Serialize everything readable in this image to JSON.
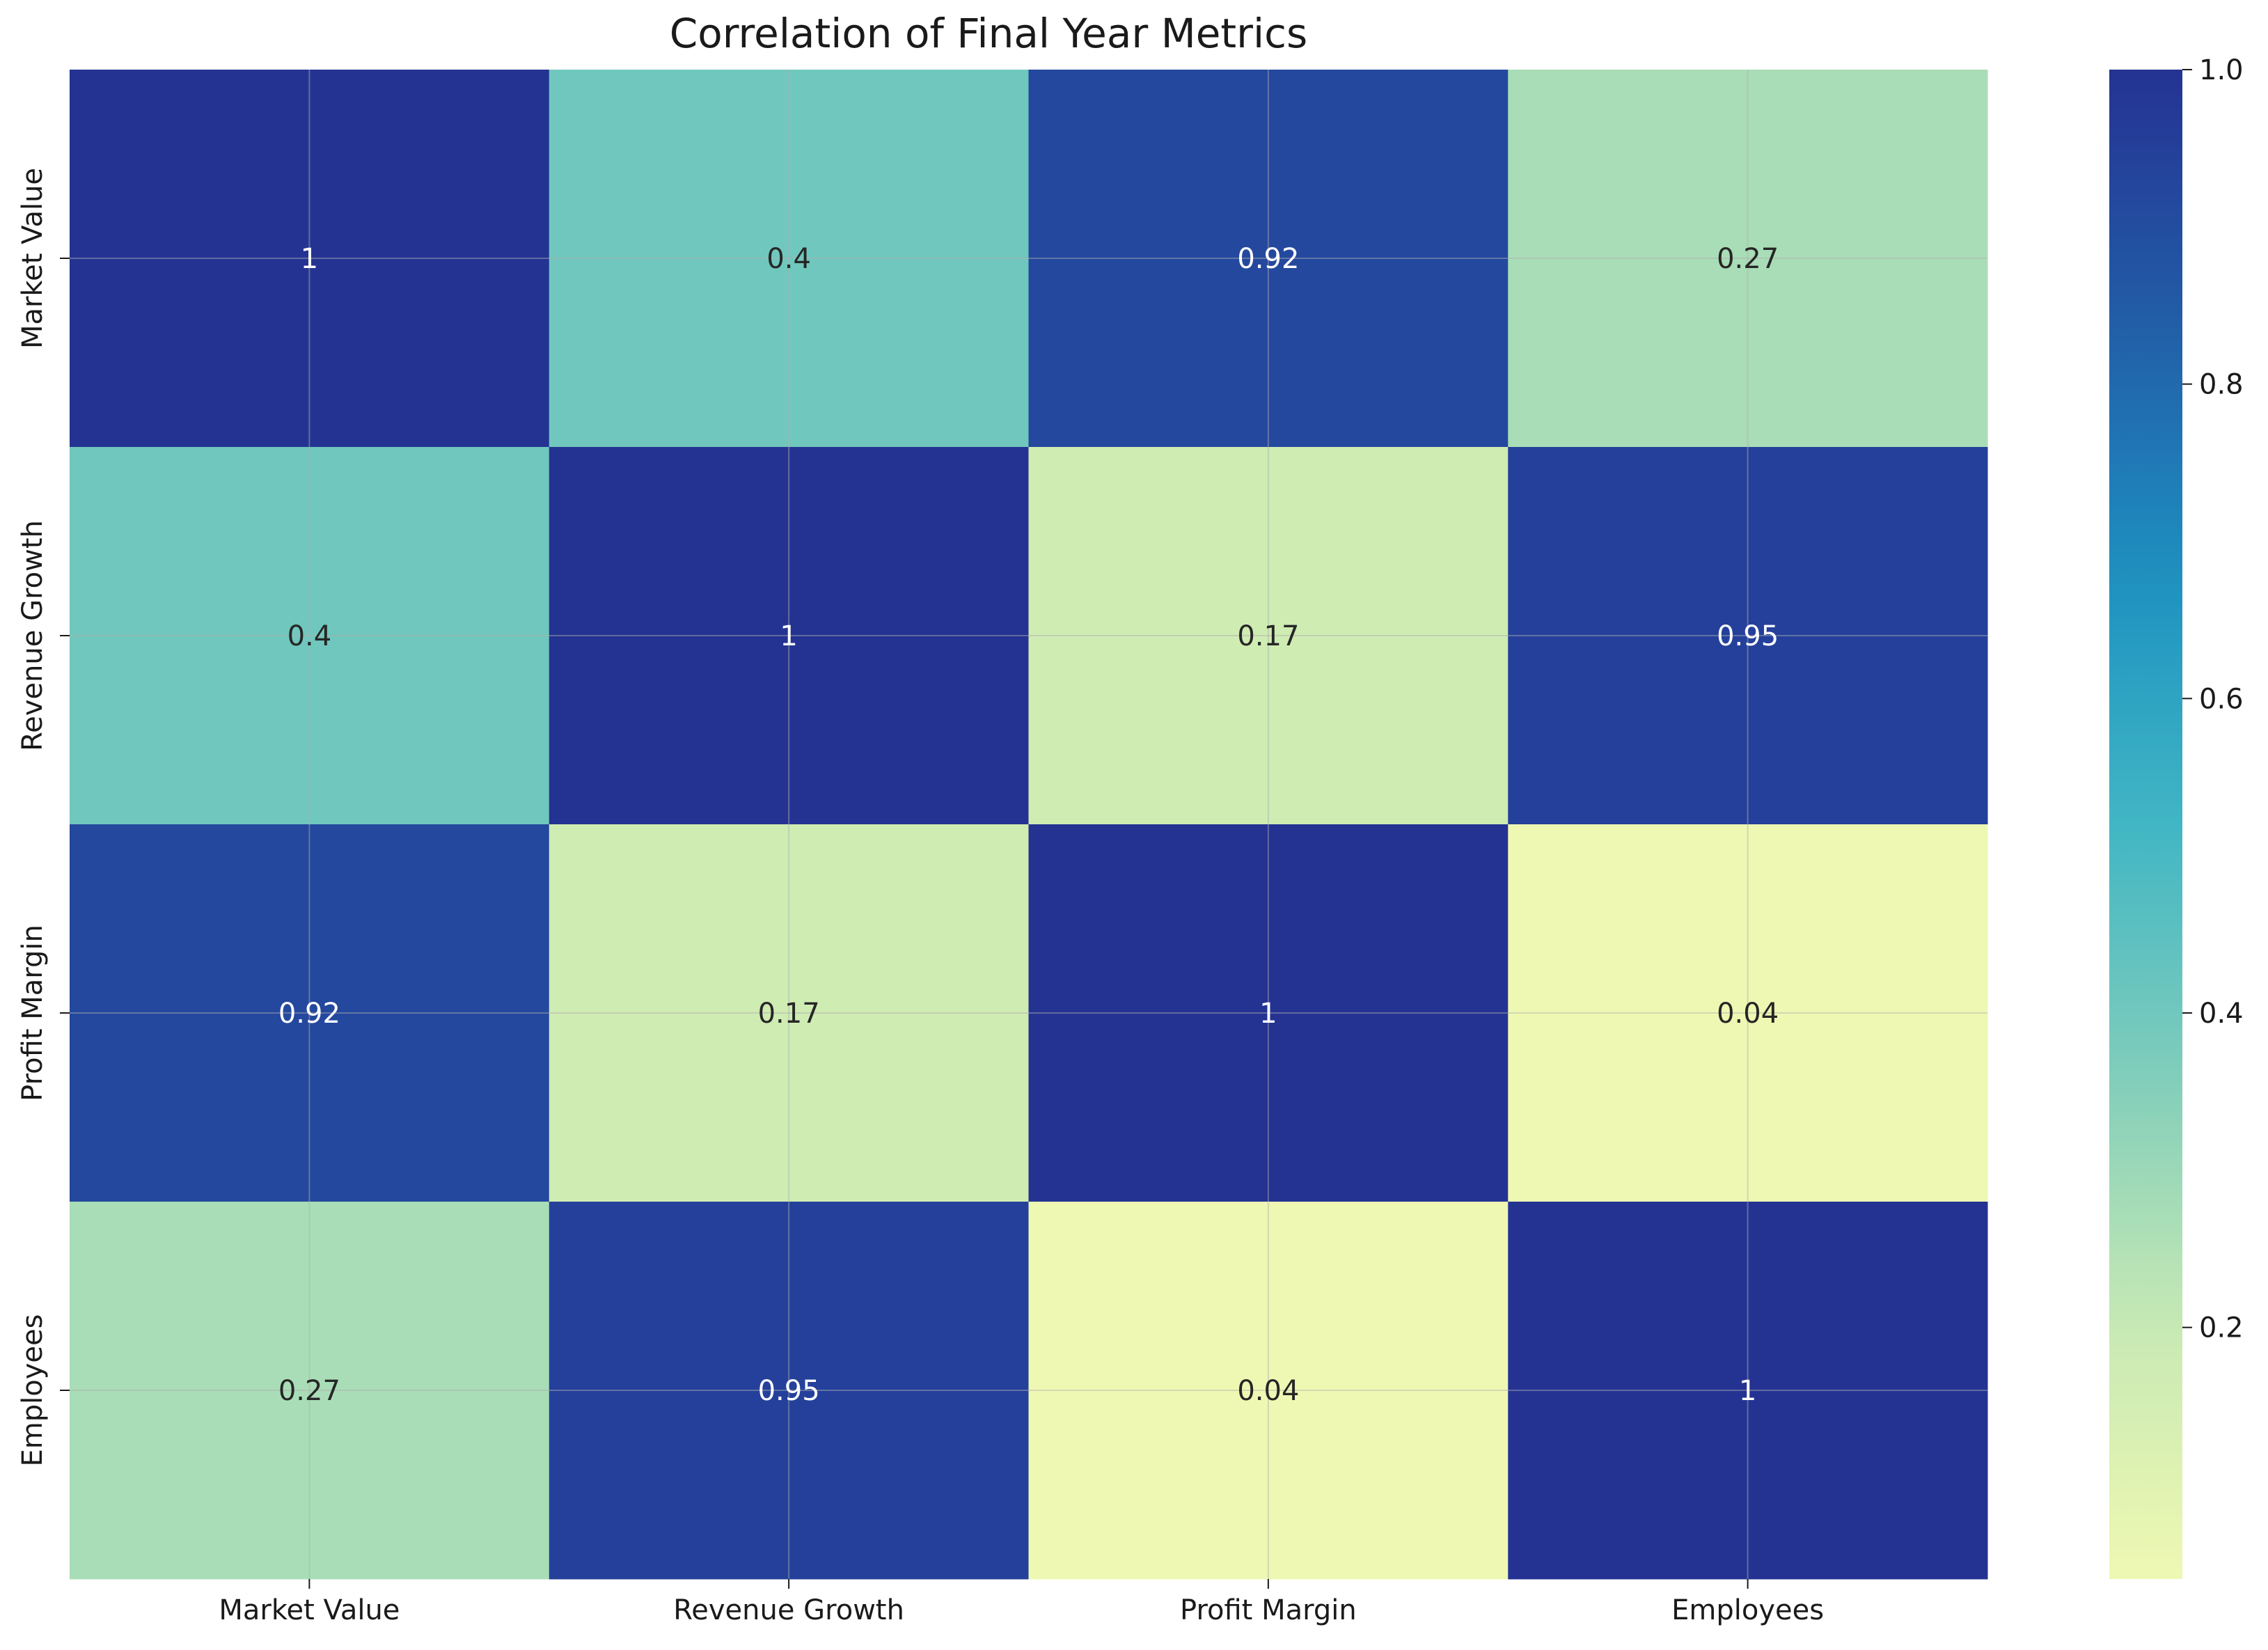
{
  "chart_data": {
    "type": "heatmap",
    "title": "Correlation of Final Year Metrics",
    "xlabel": "",
    "ylabel": "",
    "x_categories": [
      "Market Value",
      "Revenue Growth",
      "Profit Margin",
      "Employees"
    ],
    "y_categories": [
      "Market Value",
      "Revenue Growth",
      "Profit Margin",
      "Employees"
    ],
    "values": [
      [
        1,
        0.4,
        0.92,
        0.27
      ],
      [
        0.4,
        1,
        0.17,
        0.95
      ],
      [
        0.92,
        0.17,
        1,
        0.04
      ],
      [
        0.27,
        0.95,
        0.04,
        1
      ]
    ],
    "annotations": [
      [
        "1",
        "0.4",
        "0.92",
        "0.27"
      ],
      [
        "0.4",
        "1",
        "0.17",
        "0.95"
      ],
      [
        "0.92",
        "0.17",
        "1",
        "0.04"
      ],
      [
        "0.27",
        "0.95",
        "0.04",
        "1"
      ]
    ],
    "colormap": "YlGnBu",
    "colorbar": {
      "min": 0.04,
      "max": 1.0,
      "ticks": [
        0.2,
        0.4,
        0.6,
        0.8,
        1.0
      ],
      "tick_labels": [
        "0.2",
        "0.4",
        "0.6",
        "0.8",
        "1.0"
      ]
    },
    "grid": true,
    "legend": "colorbar-right"
  }
}
